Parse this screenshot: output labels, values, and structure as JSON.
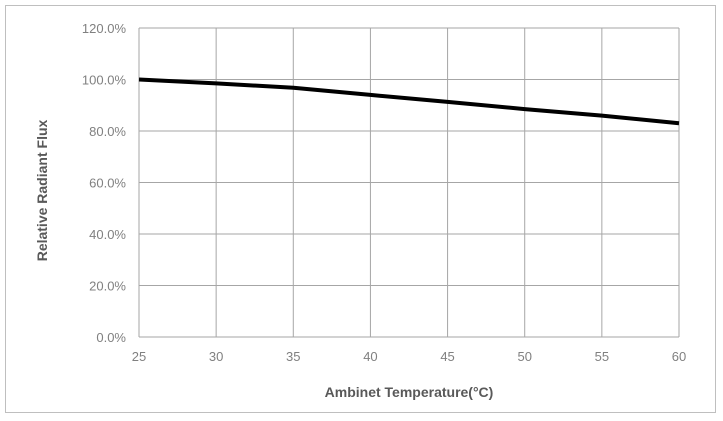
{
  "chart_data": {
    "type": "line",
    "title": "",
    "xlabel": "Ambinet Temperature(°C)",
    "ylabel": "Relative Radiant Flux",
    "xlim": [
      25,
      60
    ],
    "ylim": [
      0,
      120
    ],
    "x_ticks": [
      25,
      30,
      35,
      40,
      45,
      50,
      55,
      60
    ],
    "x_tick_labels": [
      "25",
      "30",
      "35",
      "40",
      "45",
      "50",
      "55",
      "60"
    ],
    "y_ticks": [
      0,
      20,
      40,
      60,
      80,
      100,
      120
    ],
    "y_tick_labels": [
      "0.0%",
      "20.0%",
      "40.0%",
      "60.0%",
      "80.0%",
      "100.0%",
      "120.0%"
    ],
    "grid": true,
    "legend": "none",
    "series": [
      {
        "color": "#000000",
        "x": [
          25,
          30,
          35,
          40,
          45,
          50,
          55,
          60
        ],
        "y": [
          100.0,
          98.5,
          96.8,
          94.0,
          91.3,
          88.5,
          86.0,
          83.0
        ]
      }
    ]
  },
  "colors": {
    "gridline": "#a6a6a6",
    "plot_border": "#bfbfbf",
    "series": "#000000",
    "tick_text": "#808080",
    "axis_title_text": "#595959"
  }
}
